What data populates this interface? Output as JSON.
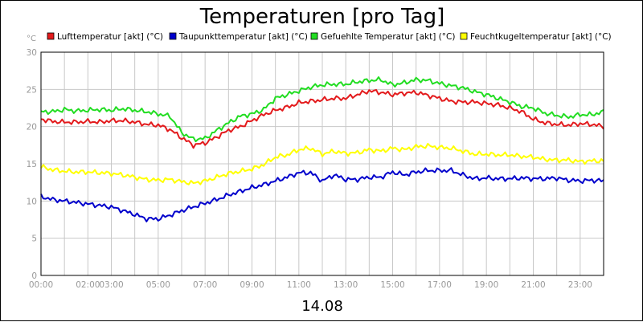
{
  "chart_data": {
    "type": "line",
    "title": "Temperaturen [pro Tag]",
    "ylabel": "°C",
    "xlabel": "14.08",
    "ylim": [
      0,
      30
    ],
    "xlim": [
      0,
      24
    ],
    "yticks": [
      0,
      5,
      10,
      15,
      20,
      25,
      30
    ],
    "xtick_labels": [
      {
        "t": 0,
        "label": "00:00"
      },
      {
        "t": 2,
        "label": "02:00"
      },
      {
        "t": 3,
        "label": "03:00"
      },
      {
        "t": 5,
        "label": "05:00"
      },
      {
        "t": 7,
        "label": "07:00"
      },
      {
        "t": 9,
        "label": "09:00"
      },
      {
        "t": 11,
        "label": "11:00"
      },
      {
        "t": 13,
        "label": "13:00"
      },
      {
        "t": 15,
        "label": "15:00"
      },
      {
        "t": 17,
        "label": "17:00"
      },
      {
        "t": 19,
        "label": "19:00"
      },
      {
        "t": 21,
        "label": "21:00"
      },
      {
        "t": 23,
        "label": "23:00"
      }
    ],
    "grid": true,
    "series": [
      {
        "name": "Lufttemperatur [akt] (°C)",
        "color": "#e31a1c",
        "x": [
          0,
          0.5,
          1,
          1.5,
          2,
          2.5,
          3,
          3.5,
          4,
          4.5,
          5,
          5.5,
          6,
          6.5,
          7,
          7.5,
          8,
          8.5,
          9,
          9.5,
          10,
          10.5,
          11,
          11.5,
          12,
          12.5,
          13,
          13.5,
          14,
          14.5,
          15,
          15.5,
          16,
          16.5,
          17,
          17.5,
          18,
          18.5,
          19,
          19.5,
          20,
          20.5,
          21,
          21.5,
          22,
          22.5,
          23,
          23.5,
          24
        ],
        "values": [
          21,
          20.7,
          20.6,
          20.6,
          20.7,
          20.6,
          20.8,
          20.8,
          20.6,
          20.3,
          20.2,
          19.6,
          18.5,
          17.5,
          17.8,
          18.6,
          19.5,
          20,
          20.8,
          21.6,
          22.2,
          22.6,
          23.2,
          23.4,
          23.6,
          23.8,
          23.8,
          24.3,
          24.8,
          24.6,
          24.3,
          24.5,
          24.6,
          24.2,
          23.8,
          23.4,
          23.3,
          23.3,
          23.1,
          22.9,
          22.5,
          22,
          21,
          20.5,
          20.3,
          20.2,
          20.4,
          20.3,
          20
        ]
      },
      {
        "name": "Taupunkttemperatur [akt] (°C)",
        "color": "#0000cc",
        "x": [
          0,
          0.5,
          1,
          1.5,
          2,
          2.5,
          3,
          3.5,
          4,
          4.5,
          5,
          5.5,
          6,
          6.5,
          7,
          7.5,
          8,
          8.5,
          9,
          9.5,
          10,
          10.5,
          11,
          11.5,
          12,
          12.5,
          13,
          13.5,
          14,
          14.5,
          15,
          15.5,
          16,
          16.5,
          17,
          17.5,
          18,
          18.5,
          19,
          19.5,
          20,
          20.5,
          21,
          21.5,
          22,
          22.5,
          23,
          23.5,
          24
        ],
        "values": [
          10.6,
          10.2,
          10,
          9.8,
          9.6,
          9.4,
          9.2,
          8.7,
          8.2,
          7.6,
          7.6,
          8.1,
          8.7,
          9.2,
          9.7,
          10.2,
          10.8,
          11.3,
          11.8,
          12.2,
          12.7,
          13.2,
          13.8,
          13.8,
          12.7,
          13.5,
          12.9,
          12.9,
          13.2,
          13.2,
          13.9,
          13.5,
          13.9,
          14.1,
          14.1,
          14.1,
          13.5,
          13,
          13.1,
          13,
          13,
          13.1,
          13,
          13,
          13.1,
          12.8,
          12.7,
          12.8,
          12.7
        ]
      },
      {
        "name": "Gefuehlte Temperatur [akt] (°C)",
        "color": "#22dd22",
        "x": [
          0,
          0.5,
          1,
          1.5,
          2,
          2.5,
          3,
          3.5,
          4,
          4.5,
          5,
          5.5,
          6,
          6.5,
          7,
          7.5,
          8,
          8.5,
          9,
          9.5,
          10,
          10.5,
          11,
          11.5,
          12,
          12.5,
          13,
          13.5,
          14,
          14.5,
          15,
          15.5,
          16,
          16.5,
          17,
          17.5,
          18,
          18.5,
          19,
          19.5,
          20,
          20.5,
          21,
          21.5,
          22,
          22.5,
          23,
          23.5,
          24
        ],
        "values": [
          22,
          22,
          22.3,
          22.1,
          22.2,
          22.3,
          22.2,
          22.4,
          22.2,
          22,
          21.7,
          21.4,
          19.2,
          18.3,
          18.4,
          19.5,
          20.5,
          21.4,
          21.7,
          22.3,
          23.8,
          24.3,
          24.8,
          25.3,
          25.6,
          25.7,
          25.7,
          26,
          26.2,
          26.3,
          25.6,
          25.9,
          26.3,
          26.2,
          25.8,
          25.5,
          25.2,
          24.7,
          24.3,
          23.8,
          23.3,
          22.7,
          22.5,
          21.8,
          21.5,
          21.3,
          21.6,
          21.6,
          22
        ]
      },
      {
        "name": "Feuchtkugeltemperatur [akt] (°C)",
        "color": "#ffff00",
        "x": [
          0,
          0.5,
          1,
          1.5,
          2,
          2.5,
          3,
          3.5,
          4,
          4.5,
          5,
          5.5,
          6,
          6.5,
          7,
          7.5,
          8,
          8.5,
          9,
          9.5,
          10,
          10.5,
          11,
          11.5,
          12,
          12.5,
          13,
          13.5,
          14,
          14.5,
          15,
          15.5,
          16,
          16.5,
          17,
          17.5,
          18,
          18.5,
          19,
          19.5,
          20,
          20.5,
          21,
          21.5,
          22,
          22.5,
          23,
          23.5,
          24
        ],
        "values": [
          14.6,
          14.2,
          14,
          13.9,
          13.9,
          13.8,
          13.7,
          13.5,
          13.2,
          12.9,
          12.8,
          12.9,
          12.6,
          12.4,
          12.7,
          13.2,
          13.7,
          14,
          14.3,
          14.9,
          15.9,
          16.2,
          16.9,
          17.1,
          16.3,
          16.7,
          16.4,
          16.5,
          16.9,
          16.7,
          17.1,
          16.9,
          17.3,
          17.4,
          17.2,
          17.1,
          16.7,
          16.3,
          16.3,
          16.2,
          16.2,
          16,
          15.9,
          15.6,
          15.5,
          15.5,
          15.3,
          15.4,
          15.4
        ]
      }
    ]
  }
}
